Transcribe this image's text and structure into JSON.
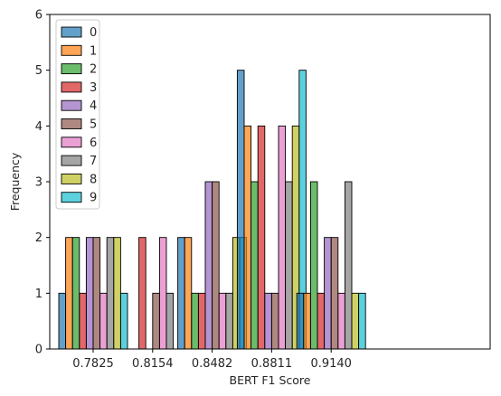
{
  "chart_data": {
    "type": "bar",
    "title": "",
    "xlabel": "BERT F1 Score",
    "ylabel": "Frequency",
    "categories": [
      "0.7825",
      "0.8154",
      "0.8482",
      "0.8811",
      "0.9140"
    ],
    "ylim": [
      0,
      6
    ],
    "yticks": [
      "0",
      "1",
      "2",
      "3",
      "4",
      "5",
      "6"
    ],
    "grid": false,
    "legend_position": "top-left",
    "series": [
      {
        "name": "0",
        "color": "#1f77b4",
        "values": [
          1,
          0,
          2,
          5,
          1
        ]
      },
      {
        "name": "1",
        "color": "#ff7f0e",
        "values": [
          2,
          0,
          2,
          4,
          1
        ]
      },
      {
        "name": "2",
        "color": "#2ca02c",
        "values": [
          2,
          0,
          1,
          3,
          3
        ]
      },
      {
        "name": "3",
        "color": "#d62728",
        "values": [
          1,
          2,
          1,
          4,
          1
        ]
      },
      {
        "name": "4",
        "color": "#9467bd",
        "values": [
          2,
          0,
          3,
          1,
          2
        ]
      },
      {
        "name": "5",
        "color": "#8c564b",
        "values": [
          2,
          1,
          3,
          1,
          2
        ]
      },
      {
        "name": "6",
        "color": "#e377c2",
        "values": [
          1,
          2,
          1,
          4,
          1
        ]
      },
      {
        "name": "7",
        "color": "#7f7f7f",
        "values": [
          2,
          1,
          1,
          3,
          3
        ]
      },
      {
        "name": "8",
        "color": "#bcbd22",
        "values": [
          2,
          0,
          2,
          4,
          1
        ]
      },
      {
        "name": "9",
        "color": "#17becf",
        "values": [
          1,
          0,
          2,
          5,
          1
        ]
      }
    ]
  }
}
